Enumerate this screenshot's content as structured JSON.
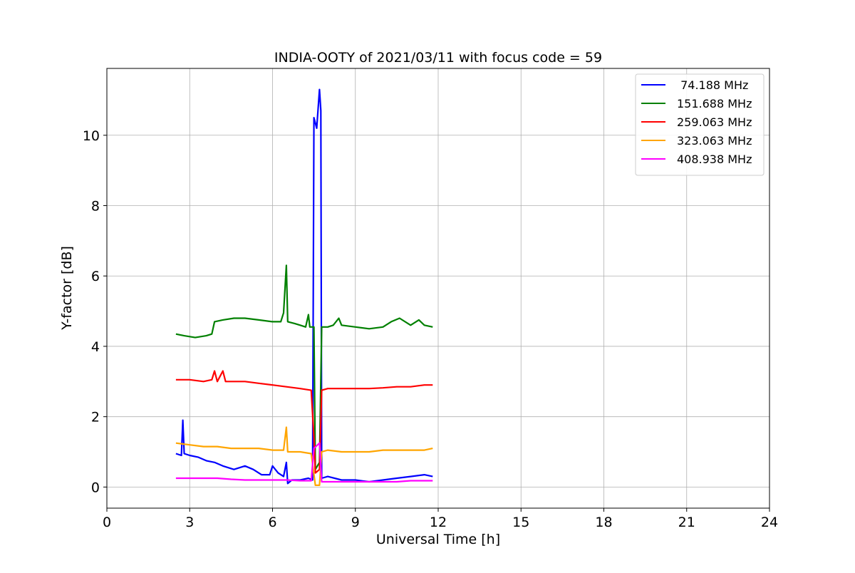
{
  "chart_data": {
    "type": "line",
    "title": "INDIA-OOTY of 2021/03/11 with focus code = 59",
    "xlabel": "Universal Time [h]",
    "ylabel": "Y-factor [dB]",
    "xlim": [
      0,
      24
    ],
    "ylim": [
      -0.6,
      11.9
    ],
    "xticks": [
      0,
      3,
      6,
      9,
      12,
      15,
      18,
      21,
      24
    ],
    "xtick_labels": [
      "0",
      "3",
      "6",
      "9",
      "12",
      "15",
      "18",
      "21",
      "24"
    ],
    "yticks": [
      0,
      2,
      4,
      6,
      8,
      10
    ],
    "ytick_labels": [
      "0",
      "2",
      "4",
      "6",
      "8",
      "10"
    ],
    "grid": true,
    "legend_position": "top-right",
    "series": [
      {
        "name": " 74.188 MHz",
        "color": "#0000ff",
        "points": [
          [
            2.5,
            0.95
          ],
          [
            2.7,
            0.9
          ],
          [
            2.75,
            1.9
          ],
          [
            2.8,
            0.95
          ],
          [
            3.0,
            0.9
          ],
          [
            3.3,
            0.85
          ],
          [
            3.6,
            0.75
          ],
          [
            3.9,
            0.7
          ],
          [
            4.2,
            0.6
          ],
          [
            4.6,
            0.5
          ],
          [
            5.0,
            0.6
          ],
          [
            5.3,
            0.5
          ],
          [
            5.6,
            0.35
          ],
          [
            5.9,
            0.35
          ],
          [
            6.0,
            0.6
          ],
          [
            6.2,
            0.4
          ],
          [
            6.4,
            0.3
          ],
          [
            6.5,
            0.7
          ],
          [
            6.55,
            0.1
          ],
          [
            6.7,
            0.2
          ],
          [
            7.0,
            0.2
          ],
          [
            7.3,
            0.25
          ],
          [
            7.45,
            0.2
          ],
          [
            7.5,
            10.5
          ],
          [
            7.6,
            10.2
          ],
          [
            7.7,
            11.3
          ],
          [
            7.75,
            10.7
          ],
          [
            7.78,
            0.25
          ],
          [
            8.0,
            0.3
          ],
          [
            8.5,
            0.2
          ],
          [
            9.0,
            0.2
          ],
          [
            9.5,
            0.15
          ],
          [
            10.0,
            0.2
          ],
          [
            10.5,
            0.25
          ],
          [
            11.0,
            0.3
          ],
          [
            11.5,
            0.35
          ],
          [
            11.8,
            0.3
          ]
        ]
      },
      {
        "name": "151.688 MHz",
        "color": "#008000",
        "points": [
          [
            2.5,
            4.35
          ],
          [
            2.8,
            4.3
          ],
          [
            3.2,
            4.25
          ],
          [
            3.6,
            4.3
          ],
          [
            3.8,
            4.35
          ],
          [
            3.9,
            4.7
          ],
          [
            4.2,
            4.75
          ],
          [
            4.6,
            4.8
          ],
          [
            5.0,
            4.8
          ],
          [
            5.5,
            4.75
          ],
          [
            6.0,
            4.7
          ],
          [
            6.3,
            4.7
          ],
          [
            6.4,
            4.95
          ],
          [
            6.5,
            6.3
          ],
          [
            6.55,
            4.7
          ],
          [
            6.8,
            4.65
          ],
          [
            7.0,
            4.6
          ],
          [
            7.2,
            4.55
          ],
          [
            7.3,
            4.9
          ],
          [
            7.35,
            4.55
          ],
          [
            7.5,
            4.55
          ],
          [
            7.55,
            0.5
          ],
          [
            7.7,
            0.7
          ],
          [
            7.78,
            4.55
          ],
          [
            8.0,
            4.55
          ],
          [
            8.2,
            4.6
          ],
          [
            8.4,
            4.8
          ],
          [
            8.5,
            4.6
          ],
          [
            9.0,
            4.55
          ],
          [
            9.5,
            4.5
          ],
          [
            10.0,
            4.55
          ],
          [
            10.3,
            4.7
          ],
          [
            10.6,
            4.8
          ],
          [
            11.0,
            4.6
          ],
          [
            11.3,
            4.75
          ],
          [
            11.5,
            4.6
          ],
          [
            11.8,
            4.55
          ]
        ]
      },
      {
        "name": "259.063 MHz",
        "color": "#ff0000",
        "points": [
          [
            2.5,
            3.05
          ],
          [
            3.0,
            3.05
          ],
          [
            3.5,
            3.0
          ],
          [
            3.8,
            3.05
          ],
          [
            3.9,
            3.3
          ],
          [
            4.0,
            3.0
          ],
          [
            4.2,
            3.3
          ],
          [
            4.3,
            3.0
          ],
          [
            5.0,
            3.0
          ],
          [
            5.5,
            2.95
          ],
          [
            6.0,
            2.9
          ],
          [
            6.5,
            2.85
          ],
          [
            7.0,
            2.8
          ],
          [
            7.4,
            2.75
          ],
          [
            7.5,
            1.4
          ],
          [
            7.55,
            0.4
          ],
          [
            7.7,
            0.5
          ],
          [
            7.78,
            2.75
          ],
          [
            8.0,
            2.8
          ],
          [
            8.5,
            2.8
          ],
          [
            9.0,
            2.8
          ],
          [
            9.5,
            2.8
          ],
          [
            10.0,
            2.82
          ],
          [
            10.5,
            2.85
          ],
          [
            11.0,
            2.85
          ],
          [
            11.5,
            2.9
          ],
          [
            11.8,
            2.9
          ]
        ]
      },
      {
        "name": "323.063 MHz",
        "color": "#ffa500",
        "points": [
          [
            2.5,
            1.25
          ],
          [
            3.0,
            1.2
          ],
          [
            3.5,
            1.15
          ],
          [
            4.0,
            1.15
          ],
          [
            4.5,
            1.1
          ],
          [
            5.0,
            1.1
          ],
          [
            5.5,
            1.1
          ],
          [
            6.0,
            1.05
          ],
          [
            6.4,
            1.05
          ],
          [
            6.5,
            1.7
          ],
          [
            6.55,
            1.0
          ],
          [
            7.0,
            1.0
          ],
          [
            7.4,
            0.95
          ],
          [
            7.55,
            0.05
          ],
          [
            7.7,
            0.05
          ],
          [
            7.78,
            1.0
          ],
          [
            8.0,
            1.05
          ],
          [
            8.5,
            1.0
          ],
          [
            9.0,
            1.0
          ],
          [
            9.5,
            1.0
          ],
          [
            10.0,
            1.05
          ],
          [
            10.5,
            1.05
          ],
          [
            11.0,
            1.05
          ],
          [
            11.5,
            1.05
          ],
          [
            11.8,
            1.1
          ]
        ]
      },
      {
        "name": "408.938 MHz",
        "color": "#ff00ff",
        "points": [
          [
            2.5,
            0.25
          ],
          [
            3.0,
            0.25
          ],
          [
            3.5,
            0.25
          ],
          [
            4.0,
            0.25
          ],
          [
            4.5,
            0.22
          ],
          [
            5.0,
            0.2
          ],
          [
            5.5,
            0.2
          ],
          [
            6.0,
            0.2
          ],
          [
            6.5,
            0.2
          ],
          [
            7.0,
            0.18
          ],
          [
            7.4,
            0.18
          ],
          [
            7.5,
            1.1
          ],
          [
            7.7,
            1.25
          ],
          [
            7.78,
            0.15
          ],
          [
            8.0,
            0.15
          ],
          [
            8.5,
            0.15
          ],
          [
            9.0,
            0.15
          ],
          [
            9.5,
            0.15
          ],
          [
            10.0,
            0.15
          ],
          [
            10.5,
            0.15
          ],
          [
            11.0,
            0.18
          ],
          [
            11.5,
            0.18
          ],
          [
            11.8,
            0.18
          ]
        ]
      }
    ]
  }
}
